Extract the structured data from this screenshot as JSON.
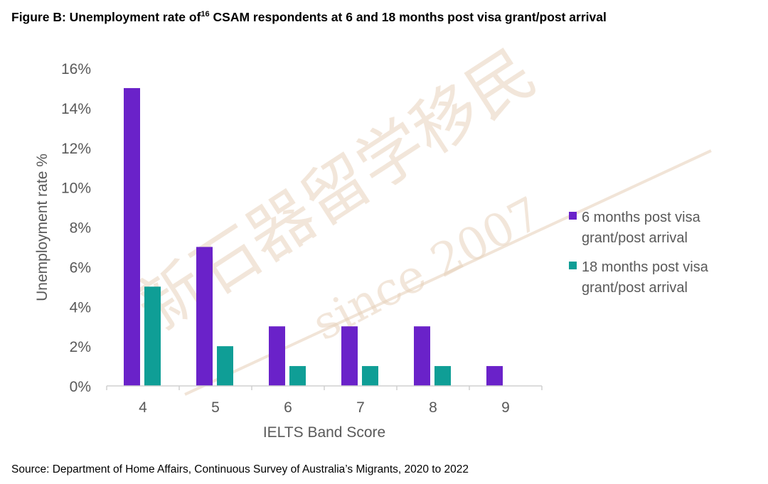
{
  "title": {
    "prefix": "Figure B: Unemployment rate of",
    "footnote": "16",
    "suffix": " CSAM respondents at 6 and 18 months post visa grant/post arrival"
  },
  "source": "Source: Department of Home Affairs, Continuous Survey of Australia’s Migrants, 2020 to 2022",
  "watermark": {
    "chinese": "新石器留学移民",
    "latin": "since 2007"
  },
  "chart_data": {
    "type": "bar",
    "title": "Figure B: Unemployment rate of16 CSAM respondents at 6 and 18 months post visa grant/post arrival",
    "xlabel": "IELTS Band Score",
    "ylabel": "Unemployment rate %",
    "categories": [
      "4",
      "5",
      "6",
      "7",
      "8",
      "9"
    ],
    "ylim": [
      0,
      16
    ],
    "yticks": [
      "0%",
      "2%",
      "4%",
      "6%",
      "8%",
      "10%",
      "12%",
      "14%",
      "16%"
    ],
    "grid": false,
    "legend_position": "right",
    "series": [
      {
        "name": "6 months post visa grant/post arrival",
        "legend_lines": [
          "6 months post visa",
          "grant/post arrival"
        ],
        "color": "#6a22c9",
        "values": [
          15,
          7,
          3,
          3,
          3,
          1
        ]
      },
      {
        "name": "18 months post visa grant/post arrival",
        "legend_lines": [
          "18 months post visa",
          "grant/post arrival"
        ],
        "color": "#0f9e96",
        "values": [
          5,
          2,
          1,
          1,
          1,
          0
        ]
      }
    ]
  }
}
